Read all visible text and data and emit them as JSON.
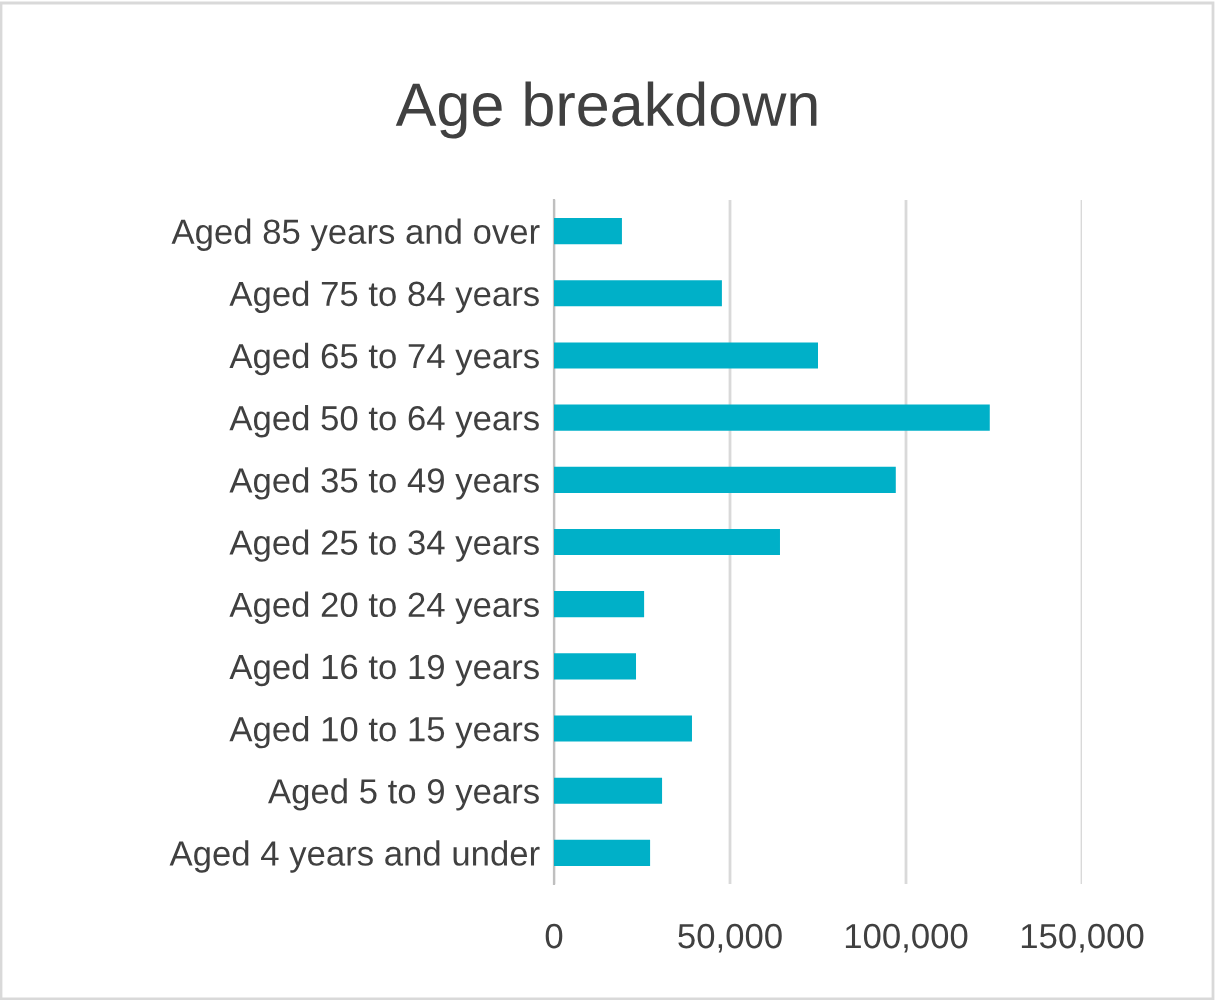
{
  "chart_data": {
    "type": "bar",
    "orientation": "horizontal",
    "title": "Age breakdown",
    "categories": [
      "Aged 85 years and over",
      "Aged 75 to 84 years",
      "Aged 65 to 74 years",
      "Aged 50 to 64 years",
      "Aged 35 to 49 years",
      "Aged 25 to 34 years",
      "Aged 20 to 24 years",
      "Aged 16 to 19 years",
      "Aged 10 to 15 years",
      "Aged 5 to 9 years",
      "Aged 4 years and under"
    ],
    "values": [
      19300,
      47700,
      75000,
      123800,
      97100,
      64200,
      25600,
      23300,
      39200,
      30700,
      27300
    ],
    "color": "#00b0c8",
    "xlim": [
      0,
      150000
    ],
    "xticks": [
      {
        "value": 0,
        "label": "0"
      },
      {
        "value": 50000,
        "label": "50,000"
      },
      {
        "value": 100000,
        "label": "100,000"
      },
      {
        "value": 150000,
        "label": "150,000"
      }
    ],
    "grid": "x"
  }
}
